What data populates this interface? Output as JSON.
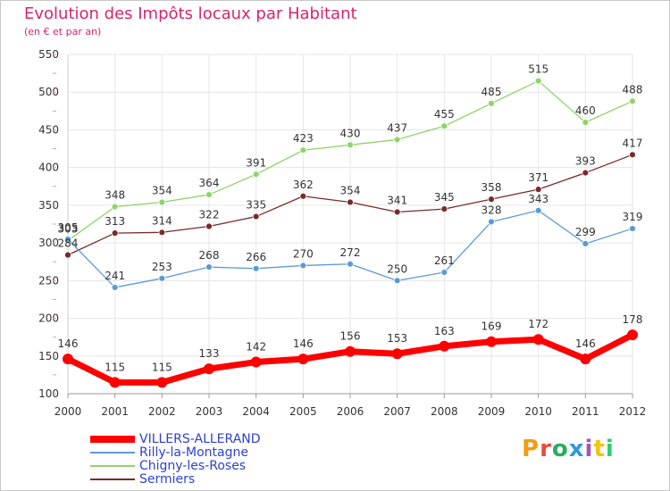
{
  "title": "Evolution des Impôts locaux par Habitant",
  "subtitle": "(en € et par an)",
  "logo": {
    "text": "Proxiti",
    "colors": [
      "#f39c12",
      "#e74c3c",
      "#27ae60",
      "#3498db",
      "#9b59b6",
      "#f1c40f",
      "#2ecc71"
    ]
  },
  "chart_data": {
    "type": "line",
    "x": [
      "2000",
      "2001",
      "2002",
      "2003",
      "2004",
      "2005",
      "2006",
      "2007",
      "2008",
      "2009",
      "2010",
      "2011",
      "2012"
    ],
    "ylim": [
      100,
      550
    ],
    "yticks": [
      "550",
      "500",
      "450",
      "400",
      "350",
      "300",
      "250",
      "200",
      "150",
      "100"
    ],
    "grid": true,
    "legend_position": "bottom-left",
    "series": [
      {
        "name": "VILLERS-ALLERAND",
        "color": "#ff0000",
        "values": [
          146,
          115,
          115,
          133,
          142,
          146,
          156,
          153,
          163,
          169,
          172,
          146,
          178
        ]
      },
      {
        "name": "Rilly-la-Montagne",
        "color": "#5b9bd5",
        "values": [
          305,
          241,
          253,
          268,
          266,
          270,
          272,
          250,
          261,
          328,
          343,
          299,
          319
        ]
      },
      {
        "name": "Chigny-les-Roses",
        "color": "#8fd46a",
        "values": [
          303,
          348,
          354,
          364,
          391,
          423,
          430,
          437,
          455,
          485,
          515,
          460,
          488
        ]
      },
      {
        "name": "Sermiers",
        "color": "#7a2a2a",
        "values": [
          284,
          313,
          314,
          322,
          335,
          362,
          354,
          341,
          345,
          358,
          371,
          393,
          417
        ]
      }
    ]
  }
}
